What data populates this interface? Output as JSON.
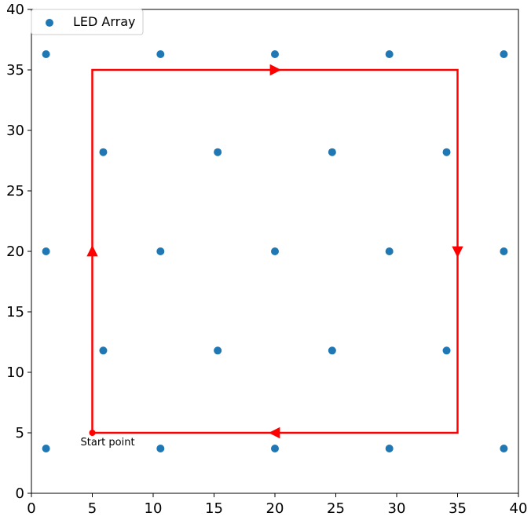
{
  "chart_data": {
    "type": "scatter",
    "title": "",
    "xlabel": "",
    "ylabel": "",
    "xlim": [
      0,
      40
    ],
    "ylim": [
      0,
      40
    ],
    "grid": false,
    "legend_placement": "top-left",
    "xticks": [
      "0",
      "5",
      "10",
      "15",
      "20",
      "25",
      "30",
      "35",
      "40"
    ],
    "yticks": [
      "0",
      "5",
      "10",
      "15",
      "20",
      "25",
      "30",
      "35",
      "40"
    ],
    "xtick_values": [
      0,
      5,
      10,
      15,
      20,
      25,
      30,
      35,
      40
    ],
    "ytick_values": [
      0,
      5,
      10,
      15,
      20,
      25,
      30,
      35,
      40
    ],
    "series": [
      {
        "name": "LED Array",
        "color": "#1f77b4",
        "points": [
          [
            1.2,
            36.3
          ],
          [
            10.6,
            36.3
          ],
          [
            20.0,
            36.3
          ],
          [
            29.4,
            36.3
          ],
          [
            38.8,
            36.3
          ],
          [
            5.9,
            28.2
          ],
          [
            15.3,
            28.2
          ],
          [
            24.7,
            28.2
          ],
          [
            34.1,
            28.2
          ],
          [
            1.2,
            20.0
          ],
          [
            10.6,
            20.0
          ],
          [
            20.0,
            20.0
          ],
          [
            29.4,
            20.0
          ],
          [
            38.8,
            20.0
          ],
          [
            5.9,
            11.8
          ],
          [
            15.3,
            11.8
          ],
          [
            24.7,
            11.8
          ],
          [
            34.1,
            11.8
          ],
          [
            1.2,
            3.7
          ],
          [
            10.6,
            3.7
          ],
          [
            20.0,
            3.7
          ],
          [
            29.4,
            3.7
          ],
          [
            38.8,
            3.7
          ]
        ]
      }
    ],
    "path": {
      "color": "#ff0000",
      "points": [
        [
          5,
          5
        ],
        [
          5,
          35
        ],
        [
          35,
          35
        ],
        [
          35,
          5
        ],
        [
          5,
          5
        ]
      ],
      "arrows": [
        {
          "at": [
            5,
            20
          ],
          "direction": "up"
        },
        {
          "at": [
            20,
            35
          ],
          "direction": "right"
        },
        {
          "at": [
            35,
            20
          ],
          "direction": "down"
        },
        {
          "at": [
            20,
            5
          ],
          "direction": "left"
        }
      ]
    },
    "annotations": [
      {
        "text": "Start point",
        "at": [
          5,
          5
        ]
      }
    ]
  }
}
